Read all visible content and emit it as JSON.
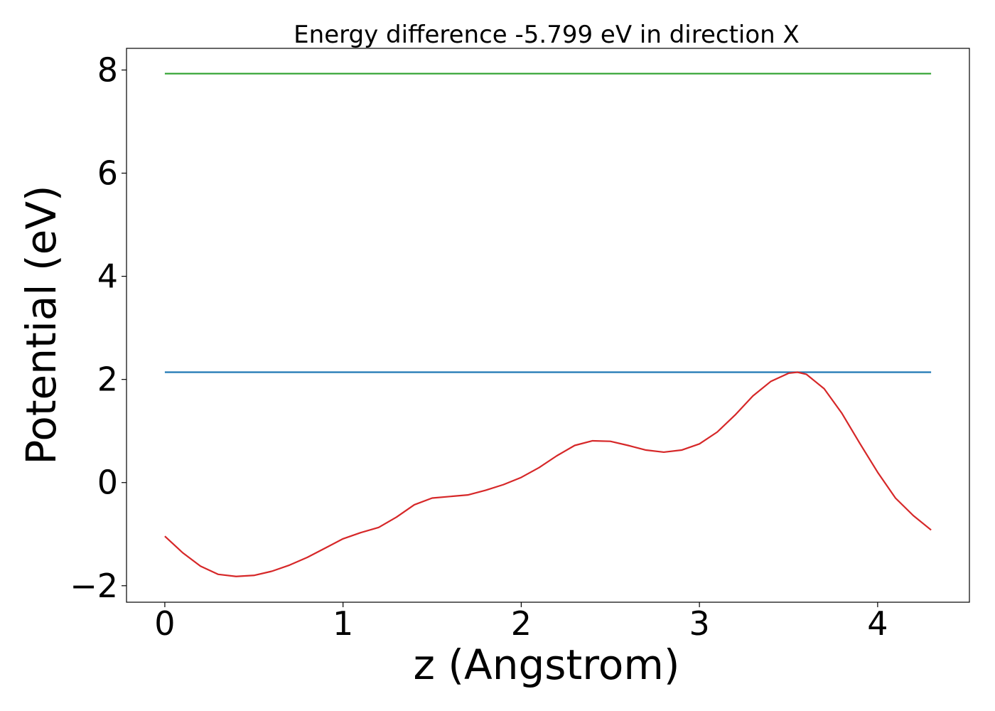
{
  "chart_data": {
    "type": "line",
    "title": "Energy difference -5.799 eV in direction X",
    "xlabel": "z (Angstrom)",
    "ylabel": "Potential (eV)",
    "xlim": [
      -0.215,
      4.515
    ],
    "ylim": [
      -2.32,
      8.42
    ],
    "xticks": [
      0,
      1,
      2,
      3,
      4
    ],
    "yticks": [
      -2,
      0,
      2,
      4,
      6,
      8
    ],
    "xtick_labels": [
      "0",
      "1",
      "2",
      "3",
      "4"
    ],
    "ytick_labels": [
      "−2",
      "0",
      "2",
      "4",
      "6",
      "8"
    ],
    "grid": false,
    "legend": "none",
    "series": [
      {
        "color": "#2ca02c",
        "x": [
          0,
          4.3
        ],
        "y": [
          7.93,
          7.93
        ]
      },
      {
        "color": "#1f77b4",
        "x": [
          0,
          4.3
        ],
        "y": [
          2.14,
          2.14
        ]
      },
      {
        "color": "#d62728",
        "x": [
          0,
          0.1,
          0.2,
          0.3,
          0.4,
          0.5,
          0.6,
          0.7,
          0.8,
          0.9,
          1.0,
          1.1,
          1.2,
          1.3,
          1.4,
          1.5,
          1.6,
          1.7,
          1.8,
          1.9,
          2.0,
          2.1,
          2.2,
          2.3,
          2.4,
          2.5,
          2.6,
          2.7,
          2.8,
          2.9,
          3.0,
          3.1,
          3.2,
          3.3,
          3.4,
          3.5,
          3.55,
          3.6,
          3.7,
          3.8,
          3.9,
          4.0,
          4.1,
          4.2,
          4.3
        ],
        "y": [
          -1.04,
          -1.36,
          -1.62,
          -1.78,
          -1.82,
          -1.8,
          -1.72,
          -1.6,
          -1.45,
          -1.27,
          -1.09,
          -0.97,
          -0.87,
          -0.67,
          -0.43,
          -0.3,
          -0.27,
          -0.24,
          -0.15,
          -0.04,
          0.1,
          0.29,
          0.52,
          0.72,
          0.81,
          0.8,
          0.72,
          0.63,
          0.59,
          0.63,
          0.75,
          0.98,
          1.31,
          1.68,
          1.96,
          2.12,
          2.14,
          2.1,
          1.82,
          1.34,
          0.76,
          0.2,
          -0.3,
          -0.64,
          -0.92
        ]
      }
    ]
  }
}
